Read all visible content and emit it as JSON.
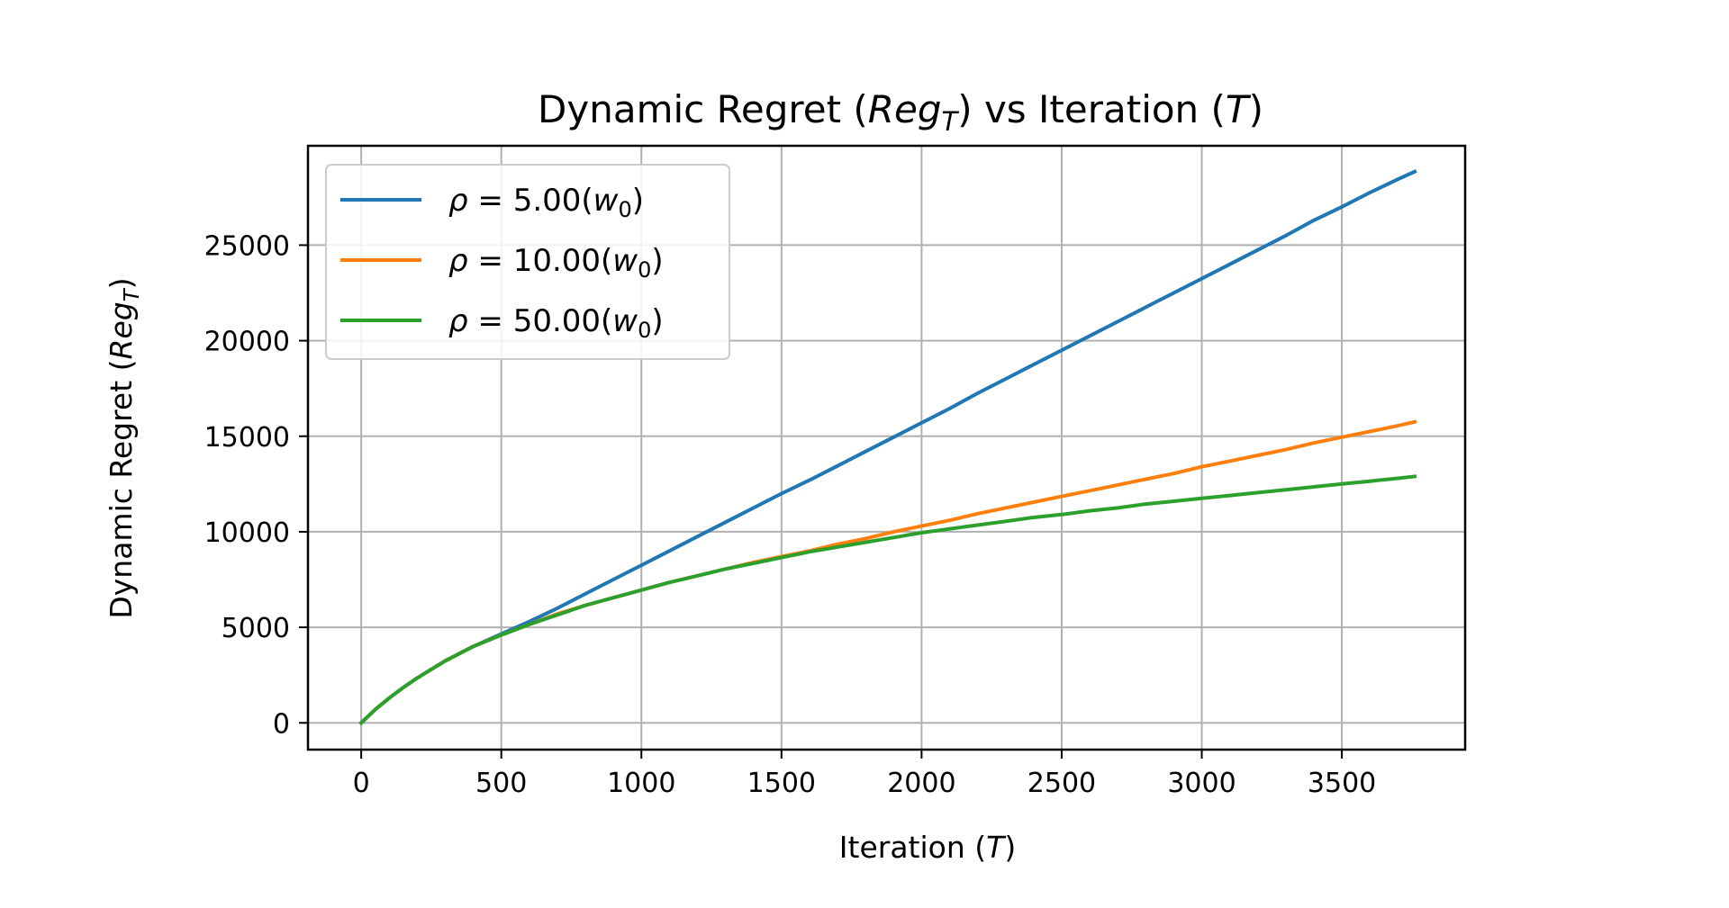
{
  "chart_data": {
    "type": "line",
    "title": {
      "prefix": "Dynamic Regret (",
      "math_reg": "Reg",
      "math_reg_sub": "T",
      "middle": ") vs Iteration (",
      "math_t": "T",
      "suffix": ")"
    },
    "xlabel": {
      "prefix": "Iteration (",
      "math": "T",
      "suffix": ")"
    },
    "ylabel": {
      "prefix": "Dynamic Regret (",
      "math": "Reg",
      "math_sub": "T",
      "suffix": ")"
    },
    "xlim": [
      -190,
      3940
    ],
    "ylim": [
      -1400,
      30200
    ],
    "xticks": [
      0,
      500,
      1000,
      1500,
      2000,
      2500,
      3000,
      3500
    ],
    "yticks": [
      0,
      5000,
      10000,
      15000,
      20000,
      25000
    ],
    "grid": true,
    "legend_position": "top-left",
    "series": [
      {
        "name": "ρ = 5.00(w0)",
        "legend": {
          "rho": "ρ",
          "value": " = 5.00(",
          "w": "w",
          "sub": "0",
          "close": ")"
        },
        "color": "#1f77b4",
        "x": [
          0,
          50,
          100,
          150,
          200,
          250,
          300,
          400,
          500,
          600,
          700,
          800,
          900,
          1000,
          1100,
          1200,
          1300,
          1400,
          1500,
          1600,
          1700,
          1800,
          1900,
          2000,
          2100,
          2200,
          2300,
          2400,
          2500,
          2600,
          2700,
          2800,
          2900,
          3000,
          3100,
          3200,
          3300,
          3400,
          3500,
          3600,
          3700,
          3760
        ],
        "y": [
          0,
          700,
          1300,
          1850,
          2350,
          2800,
          3250,
          4000,
          4650,
          5300,
          6000,
          6750,
          7500,
          8250,
          9000,
          9750,
          10500,
          11250,
          12000,
          12700,
          13450,
          14200,
          14950,
          15700,
          16450,
          17250,
          18000,
          18750,
          19500,
          20250,
          21000,
          21750,
          22500,
          23250,
          24000,
          24750,
          25500,
          26300,
          27000,
          27750,
          28450,
          28850
        ]
      },
      {
        "name": "ρ = 10.00(w0)",
        "legend": {
          "rho": "ρ",
          "value": " = 10.00(",
          "w": "w",
          "sub": "0",
          "close": ")"
        },
        "color": "#ff7f0e",
        "x": [
          0,
          50,
          100,
          150,
          200,
          250,
          300,
          400,
          500,
          600,
          700,
          800,
          900,
          1000,
          1100,
          1200,
          1300,
          1400,
          1500,
          1600,
          1700,
          1800,
          1900,
          2000,
          2100,
          2200,
          2300,
          2400,
          2500,
          2600,
          2700,
          2800,
          2900,
          3000,
          3100,
          3200,
          3300,
          3400,
          3500,
          3600,
          3700,
          3760
        ],
        "y": [
          0,
          700,
          1300,
          1850,
          2350,
          2800,
          3250,
          4000,
          4600,
          5150,
          5700,
          6150,
          6550,
          6950,
          7350,
          7700,
          8050,
          8400,
          8700,
          9000,
          9350,
          9650,
          10000,
          10300,
          10600,
          10950,
          11250,
          11550,
          11850,
          12150,
          12450,
          12750,
          13050,
          13400,
          13700,
          14000,
          14300,
          14650,
          14950,
          15250,
          15550,
          15750
        ]
      },
      {
        "name": "ρ = 50.00(w0)",
        "legend": {
          "rho": "ρ",
          "value": " = 50.00(",
          "w": "w",
          "sub": "0",
          "close": ")"
        },
        "color": "#2ca02c",
        "x": [
          0,
          50,
          100,
          150,
          200,
          250,
          300,
          400,
          500,
          600,
          700,
          800,
          900,
          1000,
          1100,
          1200,
          1300,
          1400,
          1500,
          1600,
          1700,
          1800,
          1900,
          2000,
          2100,
          2200,
          2300,
          2400,
          2500,
          2600,
          2700,
          2800,
          2900,
          3000,
          3100,
          3200,
          3300,
          3400,
          3500,
          3600,
          3700,
          3760
        ],
        "y": [
          0,
          700,
          1300,
          1850,
          2350,
          2800,
          3250,
          4000,
          4600,
          5150,
          5650,
          6150,
          6550,
          6950,
          7350,
          7700,
          8050,
          8350,
          8650,
          8950,
          9200,
          9450,
          9700,
          9950,
          10150,
          10350,
          10550,
          10750,
          10900,
          11100,
          11250,
          11450,
          11600,
          11750,
          11900,
          12050,
          12200,
          12350,
          12500,
          12650,
          12800,
          12900
        ]
      }
    ]
  }
}
